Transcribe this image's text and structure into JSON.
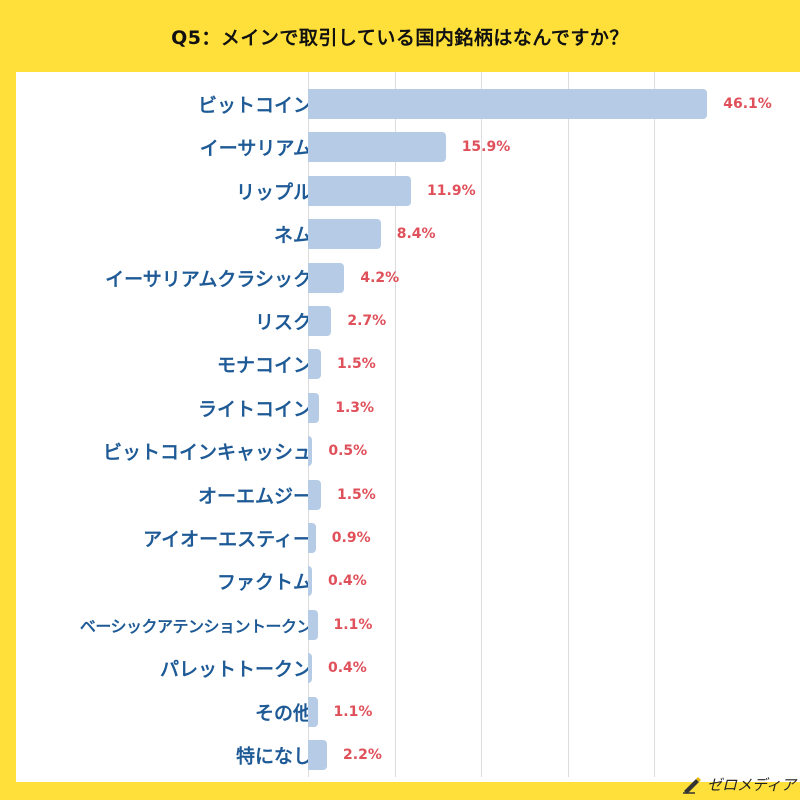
{
  "chart_data": {
    "type": "bar",
    "orientation": "horizontal",
    "title": "Q5：メインで取引している国内銘柄はなんですか？",
    "categories": [
      "ビットコイン",
      "イーサリアム",
      "リップル",
      "ネム",
      "イーサリアムクラシック",
      "リスク",
      "モナコイン",
      "ライトコイン",
      "ビットコインキャッシュ",
      "オーエムジー",
      "アイオーエスティー",
      "ファクトム",
      "ベーシックアテンショントークン",
      "パレットトークン",
      "その他",
      "特になし"
    ],
    "values": [
      46.1,
      15.9,
      11.9,
      8.4,
      4.2,
      2.7,
      1.5,
      1.3,
      0.5,
      1.5,
      0.9,
      0.4,
      1.1,
      0.4,
      1.1,
      2.2
    ],
    "value_labels": [
      "46.1%",
      "15.9%",
      "11.9%",
      "8.4%",
      "4.2%",
      "2.7%",
      "1.5%",
      "1.3%",
      "0.5%",
      "1.5%",
      "0.9%",
      "0.4%",
      "1.1%",
      "0.4%",
      "1.1%",
      "2.2%"
    ],
    "xlim": [
      0,
      50
    ],
    "grid": true,
    "colors": {
      "bar": "#B6CBE6",
      "label": "#1E5A96",
      "value": "#E0505A",
      "background": "#FFE03A"
    }
  },
  "logo": {
    "text": "ゼロメディア",
    "icon": "pen-icon"
  }
}
